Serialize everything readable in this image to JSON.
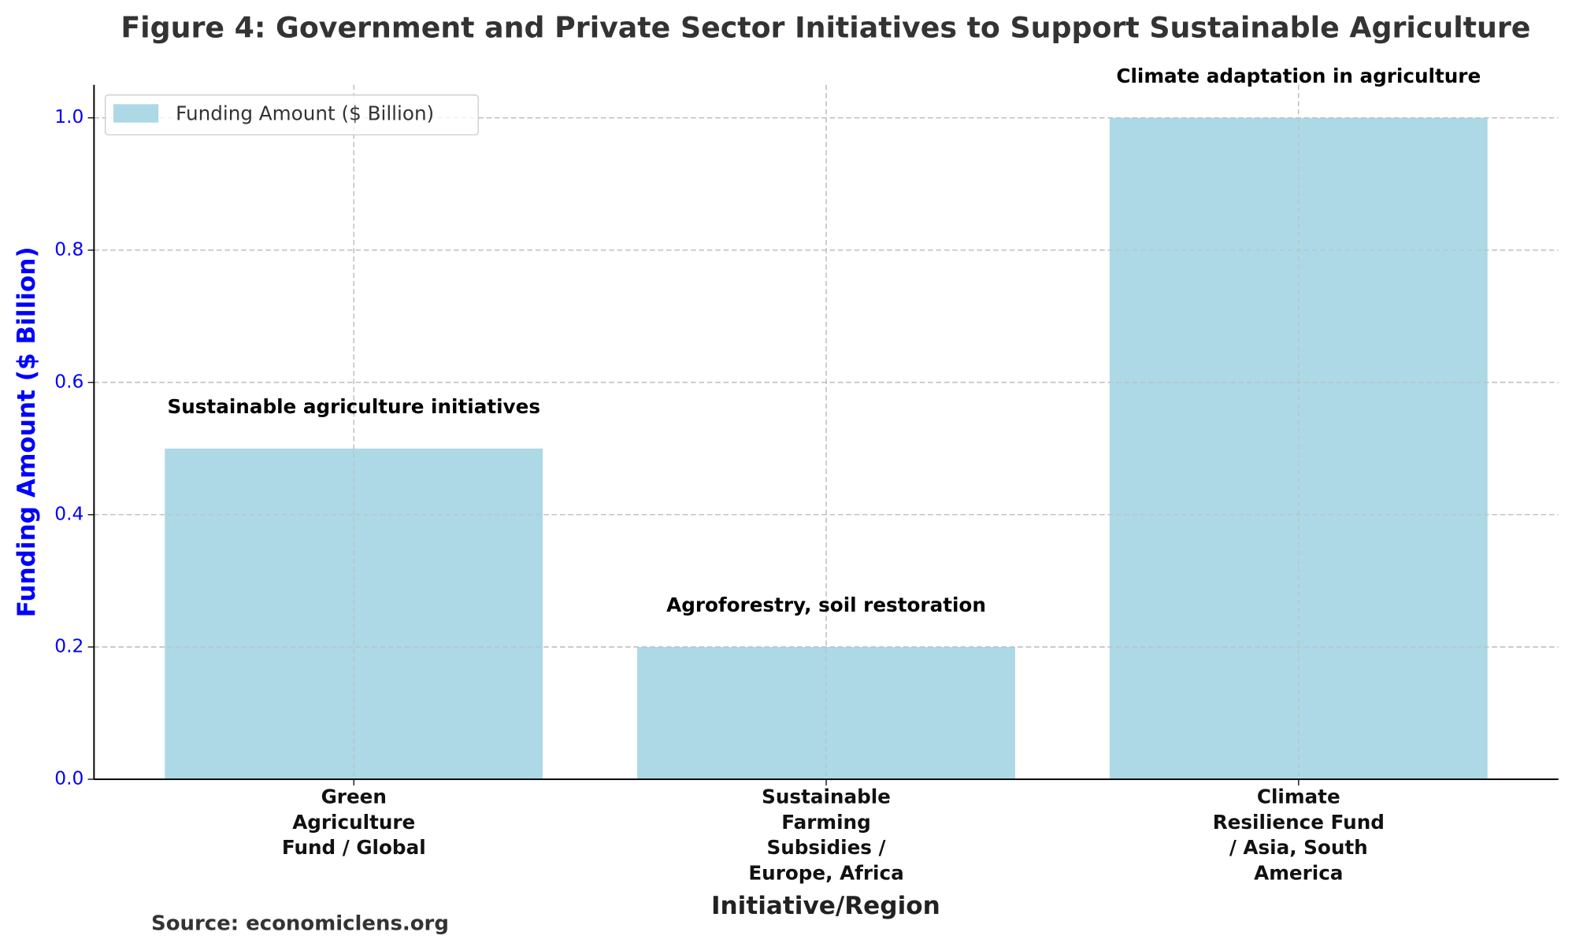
{
  "chart_data": {
    "type": "bar",
    "title": "Figure 4: Government and Private Sector Initiatives to Support Sustainable Agriculture",
    "categories": [
      "Green\nAgriculture\nFund / Global",
      "Sustainable\nFarming\nSubsidies /\nEurope, Africa",
      "Climate\nResilience Fund\n/ Asia, South\nAmerica"
    ],
    "series": [
      {
        "name": "Funding Amount ($ Billion)",
        "color": "#add8e6",
        "values": [
          0.5,
          0.2,
          1.0
        ]
      }
    ],
    "annotations": [
      "Sustainable agriculture initiatives",
      "Agroforestry, soil restoration",
      "Climate adaptation in agriculture"
    ],
    "x_label": "Initiative/Region",
    "y_label": "Funding Amount ($ Billion)",
    "ylim": [
      0,
      1.05
    ],
    "yticks": [
      {
        "value": 0,
        "label": "0.0"
      },
      0.2,
      0.4,
      0.6,
      0.8,
      {
        "value": 1,
        "label": "1.0"
      }
    ],
    "grid": true,
    "legend": "upper-left",
    "source": "Source: economiclens.org"
  }
}
